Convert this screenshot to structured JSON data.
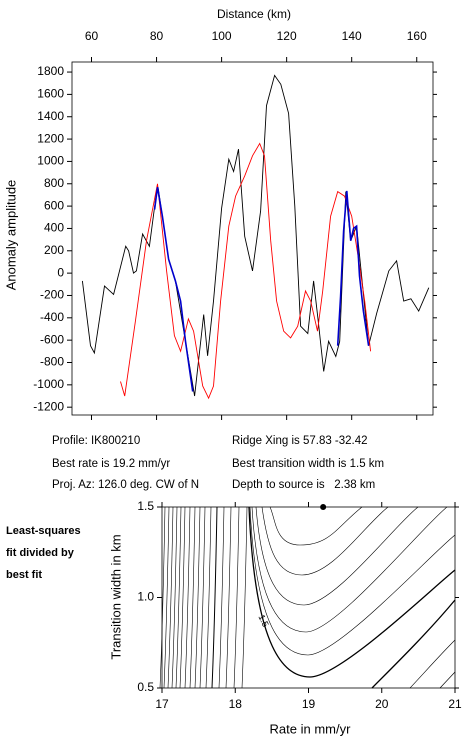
{
  "chart_data": [
    {
      "type": "line",
      "title": "Distance (km)",
      "y_label": "Anomaly amplitude",
      "xlim": [
        54,
        165
      ],
      "xticks": [
        60,
        80,
        100,
        120,
        140,
        160
      ],
      "ylim": [
        -1270,
        1890
      ],
      "yticks": [
        -1200,
        -1000,
        -800,
        -600,
        -400,
        -200,
        0,
        200,
        400,
        600,
        800,
        1000,
        1200,
        1400,
        1600,
        1800
      ],
      "series": [
        {
          "color": "#000000",
          "x": [
            57.2,
            59.7,
            60.9,
            64,
            66.8,
            70.5,
            71.4,
            72.9,
            73.8,
            75.7,
            77.8,
            80,
            80.5,
            83.7,
            85.8,
            88.9,
            91.7,
            94.5,
            95.7,
            97.5,
            100,
            102.2,
            103.7,
            105.2,
            107.1,
            109.5,
            112,
            113.8,
            116.3,
            118.2,
            120.6,
            122.5,
            124.3,
            126.5,
            128.3,
            129.8,
            131.4,
            132.9,
            135.1,
            136.3,
            138.2,
            139.7,
            141.5,
            145.2,
            147.7,
            151.4,
            153.8,
            156,
            158.2,
            160.6,
            163.7
          ],
          "values": [
            -70,
            -650,
            -715,
            -115,
            -190,
            240,
            200,
            0,
            20,
            350,
            240,
            730,
            760,
            125,
            -70,
            -610,
            -1100,
            -370,
            -740,
            -250,
            580,
            1020,
            910,
            1110,
            330,
            20,
            555,
            1500,
            1770,
            1690,
            1430,
            600,
            -475,
            -540,
            -70,
            -450,
            -880,
            -610,
            -745,
            -610,
            730,
            290,
            420,
            -650,
            -360,
            20,
            110,
            -250,
            -230,
            -340,
            -130
          ]
        },
        {
          "color": "#ff0000",
          "x": [
            68.9,
            70.2,
            73.5,
            76.9,
            80.3,
            83.1,
            85.5,
            87.4,
            89.8,
            91.4,
            94.2,
            96,
            97.5,
            99.7,
            102.2,
            104.3,
            107.1,
            109.5,
            111.7,
            113.2,
            115.1,
            116.9,
            119.1,
            121.2,
            123.4,
            125.8,
            127.4,
            129.5,
            131.1,
            133.5,
            135.7,
            137.8,
            140,
            142.2,
            144,
            145.8
          ],
          "values": [
            -970,
            -1100,
            -430,
            290,
            800,
            20,
            -560,
            -700,
            -410,
            -520,
            -1010,
            -1120,
            -1010,
            -250,
            420,
            690,
            870,
            1050,
            1160,
            1050,
            290,
            -250,
            -520,
            -580,
            -475,
            -160,
            -250,
            -520,
            -160,
            510,
            730,
            690,
            510,
            110,
            -250,
            -700
          ]
        },
        {
          "color": "#0000cc",
          "x": [
            79.4,
            80.3,
            81.8,
            83.7,
            85.8,
            87.4,
            88.9,
            91.1,
            null,
            135.7,
            136.6,
            137.5,
            138.5,
            139.7,
            140.6,
            141.5,
            142.4,
            143.6,
            145.2
          ],
          "values": [
            570,
            770,
            510,
            125,
            -70,
            -250,
            -610,
            -1060,
            null,
            -650,
            -205,
            375,
            735,
            290,
            400,
            420,
            -25,
            -340,
            -650
          ]
        }
      ]
    },
    {
      "type": "contour",
      "x_label": "Rate in mm/yr",
      "y_label": "Transition width in km",
      "xlim": [
        17,
        21
      ],
      "xticks": [
        17,
        18,
        19,
        20,
        21
      ],
      "ylim": [
        0.5,
        1.5
      ],
      "yticks": [
        0.5,
        {
          "value": 1,
          "label": "1.0"
        },
        1.5
      ],
      "contour_label": "1.5",
      "x": [
        19.2
      ],
      "values": [
        1.5
      ],
      "color": "#000000"
    }
  ],
  "annotations": [
    "Profile: IK800210",
    "Best rate is 19.2 mm/yr",
    "Proj. Az: 126.0 deg. CW of N",
    "Ridge Xing is 57.83 -32.42",
    "Best transition width is 1.5 km",
    "Depth to source is   2.38 km"
  ],
  "side_note": [
    "Least-squares",
    "fit divided by",
    "best fit"
  ]
}
